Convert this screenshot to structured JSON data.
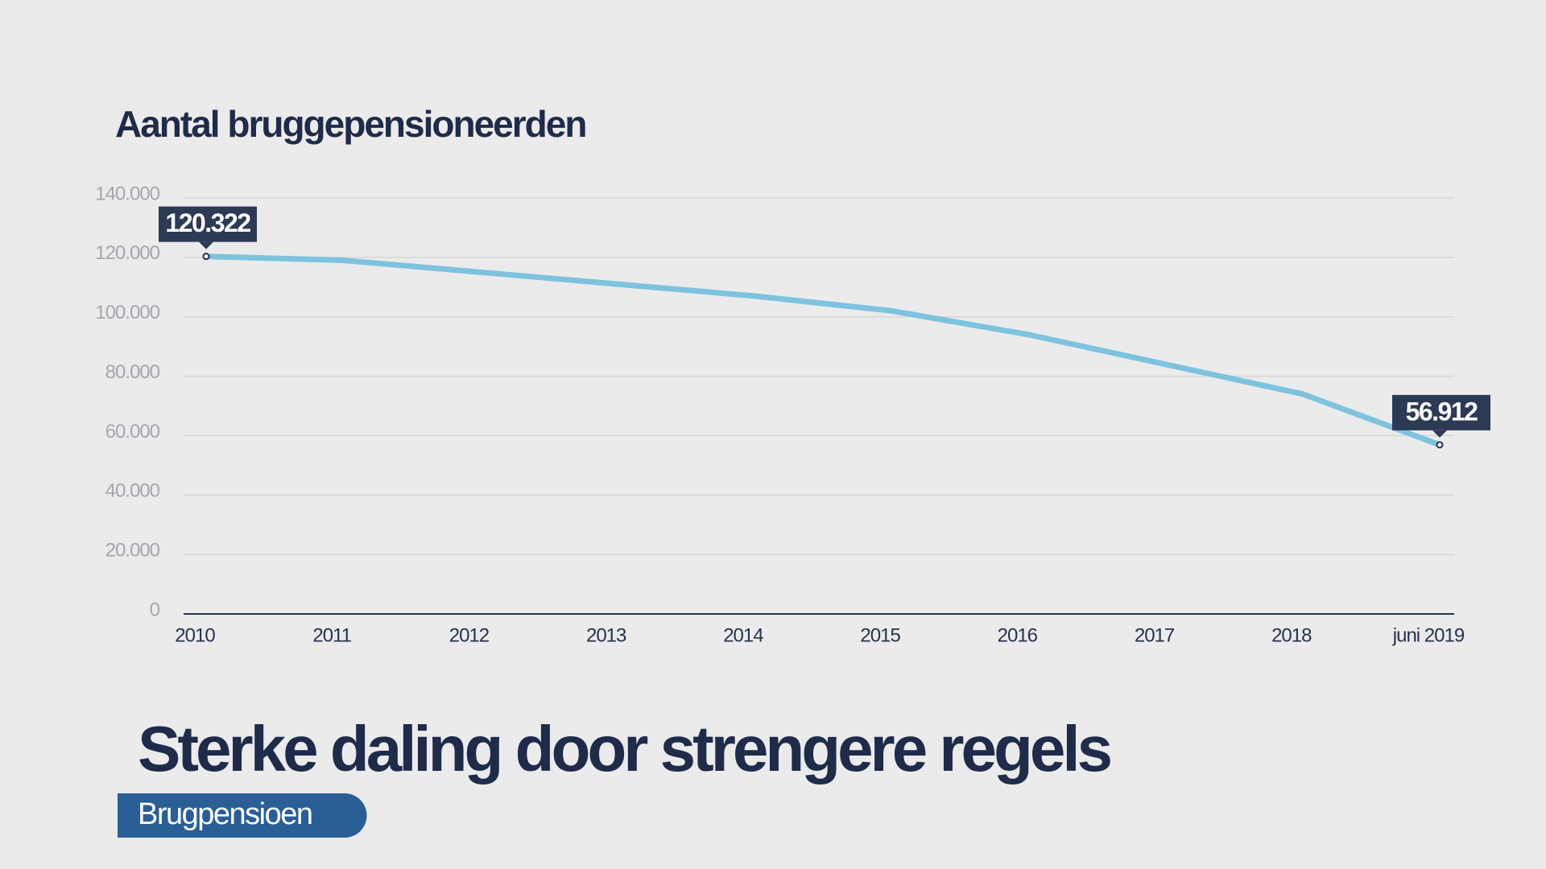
{
  "chart_data": {
    "type": "line",
    "title": "Aantal bruggepensioneerden",
    "categories": [
      "2010",
      "2011",
      "2012",
      "2013",
      "2014",
      "2015",
      "2016",
      "2017",
      "2018",
      "juni 2019"
    ],
    "values": [
      120322,
      119000,
      115000,
      111000,
      107000,
      102000,
      94000,
      84000,
      74000,
      56912
    ],
    "value_labels": [
      "120.322",
      null,
      null,
      null,
      null,
      null,
      null,
      null,
      null,
      "56.912"
    ],
    "color": "#7ec3de",
    "ylim": [
      0,
      140000
    ],
    "yticks": [
      0,
      {
        "value": 20000,
        "label": "20.000"
      },
      {
        "value": 40000,
        "label": "40.000"
      },
      {
        "value": 60000,
        "label": "60.000"
      },
      {
        "value": 80000,
        "label": "80.000"
      },
      {
        "value": 100000,
        "label": "100.000"
      },
      {
        "value": 120000,
        "label": "120.000"
      },
      {
        "value": 140000,
        "label": "140.000"
      }
    ],
    "grid": true
  },
  "headline": "Sterke daling door strengere regels",
  "tag": "Brugpensioen"
}
